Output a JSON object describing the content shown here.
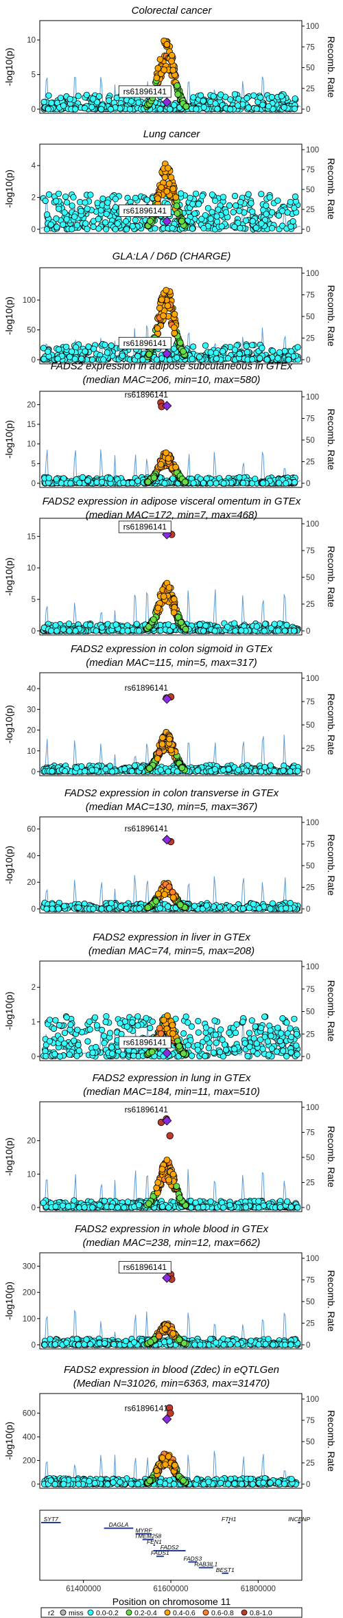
{
  "chart_data": {
    "type": "scatter",
    "y_label": "-log10(p)",
    "y2_label": "Recomb. Rate",
    "x_label": "Position on chromosome 11",
    "lead_snp": "rs61896141",
    "x_range": [
      61300000,
      61900000
    ],
    "x_ticks": [
      "61400000",
      "61600000",
      "61800000"
    ],
    "recomb_ticks": [
      0,
      25,
      50,
      75,
      100
    ],
    "panels": [
      {
        "title": [
          "Colorectal cancer"
        ],
        "ymax": 12,
        "yticks": [
          0,
          5,
          10
        ],
        "lead": 1.0,
        "peak": 10.5,
        "hi": [],
        "label_low": true
      },
      {
        "title": [
          "Lung cancer"
        ],
        "ymax": 5,
        "yticks": [
          0,
          2,
          4
        ],
        "lead": 0.5,
        "peak": 4.2,
        "hi": [],
        "label_low": true
      },
      {
        "title": [
          "GLA:LA / D6D (CHARGE)"
        ],
        "ymax": 145,
        "yticks": [
          0,
          50,
          100
        ],
        "lead": 10,
        "peak": 128,
        "hi": [],
        "label_low": true
      },
      {
        "title": [
          "FADS2 expression in adipose subcutaneous in GTEx",
          "(median MAC=206, min=10, max=580)"
        ],
        "ymax": 22,
        "yticks": [
          0,
          5,
          10,
          15,
          20
        ],
        "lead": 19.7,
        "peak": 8,
        "hi": [
          [
            61577000,
            20.5
          ],
          [
            61579000,
            19.5
          ]
        ],
        "label_low": false
      },
      {
        "title": [
          "FADS2 expression in adipose visceral omentum in GTEx",
          "(median MAC=172, min=7, max=468)"
        ],
        "ymax": 17,
        "yticks": [
          0,
          5,
          10,
          15
        ],
        "lead": 15.3,
        "peak": 8,
        "hi": [
          [
            61590000,
            15.8
          ],
          [
            61602000,
            15.3
          ]
        ],
        "label_low": true
      },
      {
        "title": [
          "FADS2 expression in colon sigmoid in GTEx",
          "(median MAC=115, min=5, max=317)"
        ],
        "ymax": 45,
        "yticks": [
          0,
          10,
          20,
          30,
          40
        ],
        "lead": 35,
        "peak": 19,
        "hi": [
          [
            61590000,
            35.5
          ],
          [
            61600000,
            36
          ]
        ],
        "label_low": false
      },
      {
        "title": [
          "FADS2 expression in colon transverse in GTEx",
          "(median MAC=130, min=5, max=367)"
        ],
        "ymax": 65,
        "yticks": [
          0,
          20,
          40,
          60
        ],
        "lead": 52,
        "peak": 20,
        "hi": [
          [
            61600000,
            50.5
          ]
        ],
        "label_low": false
      },
      {
        "title": [
          "FADS2 expression in liver in GTEx",
          "(median MAC=74, min=5, max=208)"
        ],
        "ymax": 2.6,
        "yticks": [
          0,
          1,
          2
        ],
        "lead": 0.1,
        "peak": 1.2,
        "hi": [],
        "label_low": true
      },
      {
        "title": [
          "FADS2 expression in lung in GTEx",
          "(median MAC=184, min=11, max=510)"
        ],
        "ymax": 30,
        "yticks": [
          0,
          10,
          20
        ],
        "lead": 26,
        "peak": 14.5,
        "hi": [
          [
            61578000,
            25.5
          ],
          [
            61590000,
            26.5
          ],
          [
            61598000,
            21.5
          ]
        ],
        "label_low": false
      },
      {
        "title": [
          "FADS2 expression in whole blood in GTEx",
          "(median MAC=238, min=12, max=662)"
        ],
        "ymax": 330,
        "yticks": [
          0,
          100,
          200,
          300
        ],
        "lead": 255,
        "peak": 85,
        "hi": [
          [
            61600000,
            268
          ],
          [
            61602000,
            250
          ]
        ],
        "label_low": true
      },
      {
        "title": [
          "FADS2 expression in blood (Zdec) in eQTLGen",
          "(Median N=31026, min=6363, max=31470)"
        ],
        "ymax": 720,
        "yticks": [
          0,
          200,
          400,
          600
        ],
        "lead": 550,
        "peak": 290,
        "hi": [
          [
            61597000,
            645
          ],
          [
            61599000,
            600
          ]
        ],
        "label_low": false
      }
    ],
    "genes": [
      {
        "name": "SYT7",
        "start": 61282000,
        "end": 61348000,
        "row": 0,
        "label_above": true
      },
      {
        "name": "FTH1",
        "start": 61731000,
        "end": 61735000,
        "row": 0,
        "label_above": true
      },
      {
        "name": "INCENP",
        "start": 61891000,
        "end": 61921000,
        "row": 0,
        "label_above": true
      },
      {
        "name": "DAGLA",
        "start": 61447000,
        "end": 61514000,
        "row": 1,
        "label_above": true
      },
      {
        "name": "MYRF",
        "start": 61520000,
        "end": 61556000,
        "row": 2,
        "label_above": true
      },
      {
        "name": "TMEM258",
        "start": 61535000,
        "end": 61560000,
        "row": 3,
        "label_above": true
      },
      {
        "name": "FEN1",
        "start": 61560000,
        "end": 61564000,
        "row": 4,
        "label_above": true
      },
      {
        "name": "FADS2",
        "start": 61560000,
        "end": 61634000,
        "row": 5,
        "label_above": true
      },
      {
        "name": "FADS1",
        "start": 61567000,
        "end": 61584000,
        "row": 6,
        "label_above": true
      },
      {
        "name": "FADS3",
        "start": 61640000,
        "end": 61660000,
        "row": 7,
        "label_above": true
      },
      {
        "name": "RAB3IL1",
        "start": 61664000,
        "end": 61697000,
        "row": 8,
        "label_above": true
      },
      {
        "name": "BEST1",
        "start": 61717000,
        "end": 61732000,
        "row": 9,
        "label_above": true
      }
    ],
    "legend": {
      "title": "r2",
      "items": [
        {
          "label": "miss",
          "color": "#b3b3b3"
        },
        {
          "label": "0.0-0.2",
          "color": "#33ffff"
        },
        {
          "label": "0.2-0.4",
          "color": "#66dd44"
        },
        {
          "label": "0.4-0.6",
          "color": "#ffa500"
        },
        {
          "label": "0.6-0.8",
          "color": "#ff7f2a"
        },
        {
          "label": "0.8-1.0",
          "color": "#c0392b"
        }
      ]
    },
    "lead_color": "#8a2be2"
  }
}
